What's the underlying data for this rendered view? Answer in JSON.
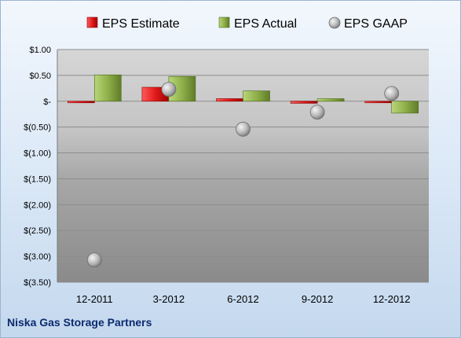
{
  "company": "Niska Gas Storage Partners",
  "colors": {
    "estimate": "#e02020",
    "actual": "#8fb04a",
    "gaap": "#b8b8b8"
  },
  "chart_data": {
    "type": "bar",
    "categories": [
      "12-2011",
      "3-2012",
      "6-2012",
      "9-2012",
      "12-2012"
    ],
    "series": [
      {
        "name": "EPS Estimate",
        "kind": "bar",
        "values": [
          -0.01,
          0.27,
          0.05,
          -0.04,
          -0.03
        ]
      },
      {
        "name": "EPS Actual",
        "kind": "bar",
        "values": [
          0.51,
          0.48,
          0.2,
          0.05,
          -0.23
        ]
      },
      {
        "name": "EPS GAAP",
        "kind": "marker",
        "values": [
          -3.07,
          0.23,
          -0.54,
          -0.21,
          0.15
        ]
      }
    ],
    "yticks": [
      1.0,
      0.5,
      0,
      -0.5,
      -1.0,
      -1.5,
      -2.0,
      -2.5,
      -3.0,
      -3.5
    ],
    "ytick_labels": [
      "$1.00",
      "$0.50",
      "$-",
      "$(0.50)",
      "$(1.00)",
      "$(1.50)",
      "$(2.00)",
      "$(2.50)",
      "$(3.00)",
      "$(3.50)"
    ],
    "ylim": [
      -3.5,
      1.0
    ],
    "legend_position": "top",
    "grid": true,
    "title": "",
    "xlabel": "",
    "ylabel": ""
  }
}
